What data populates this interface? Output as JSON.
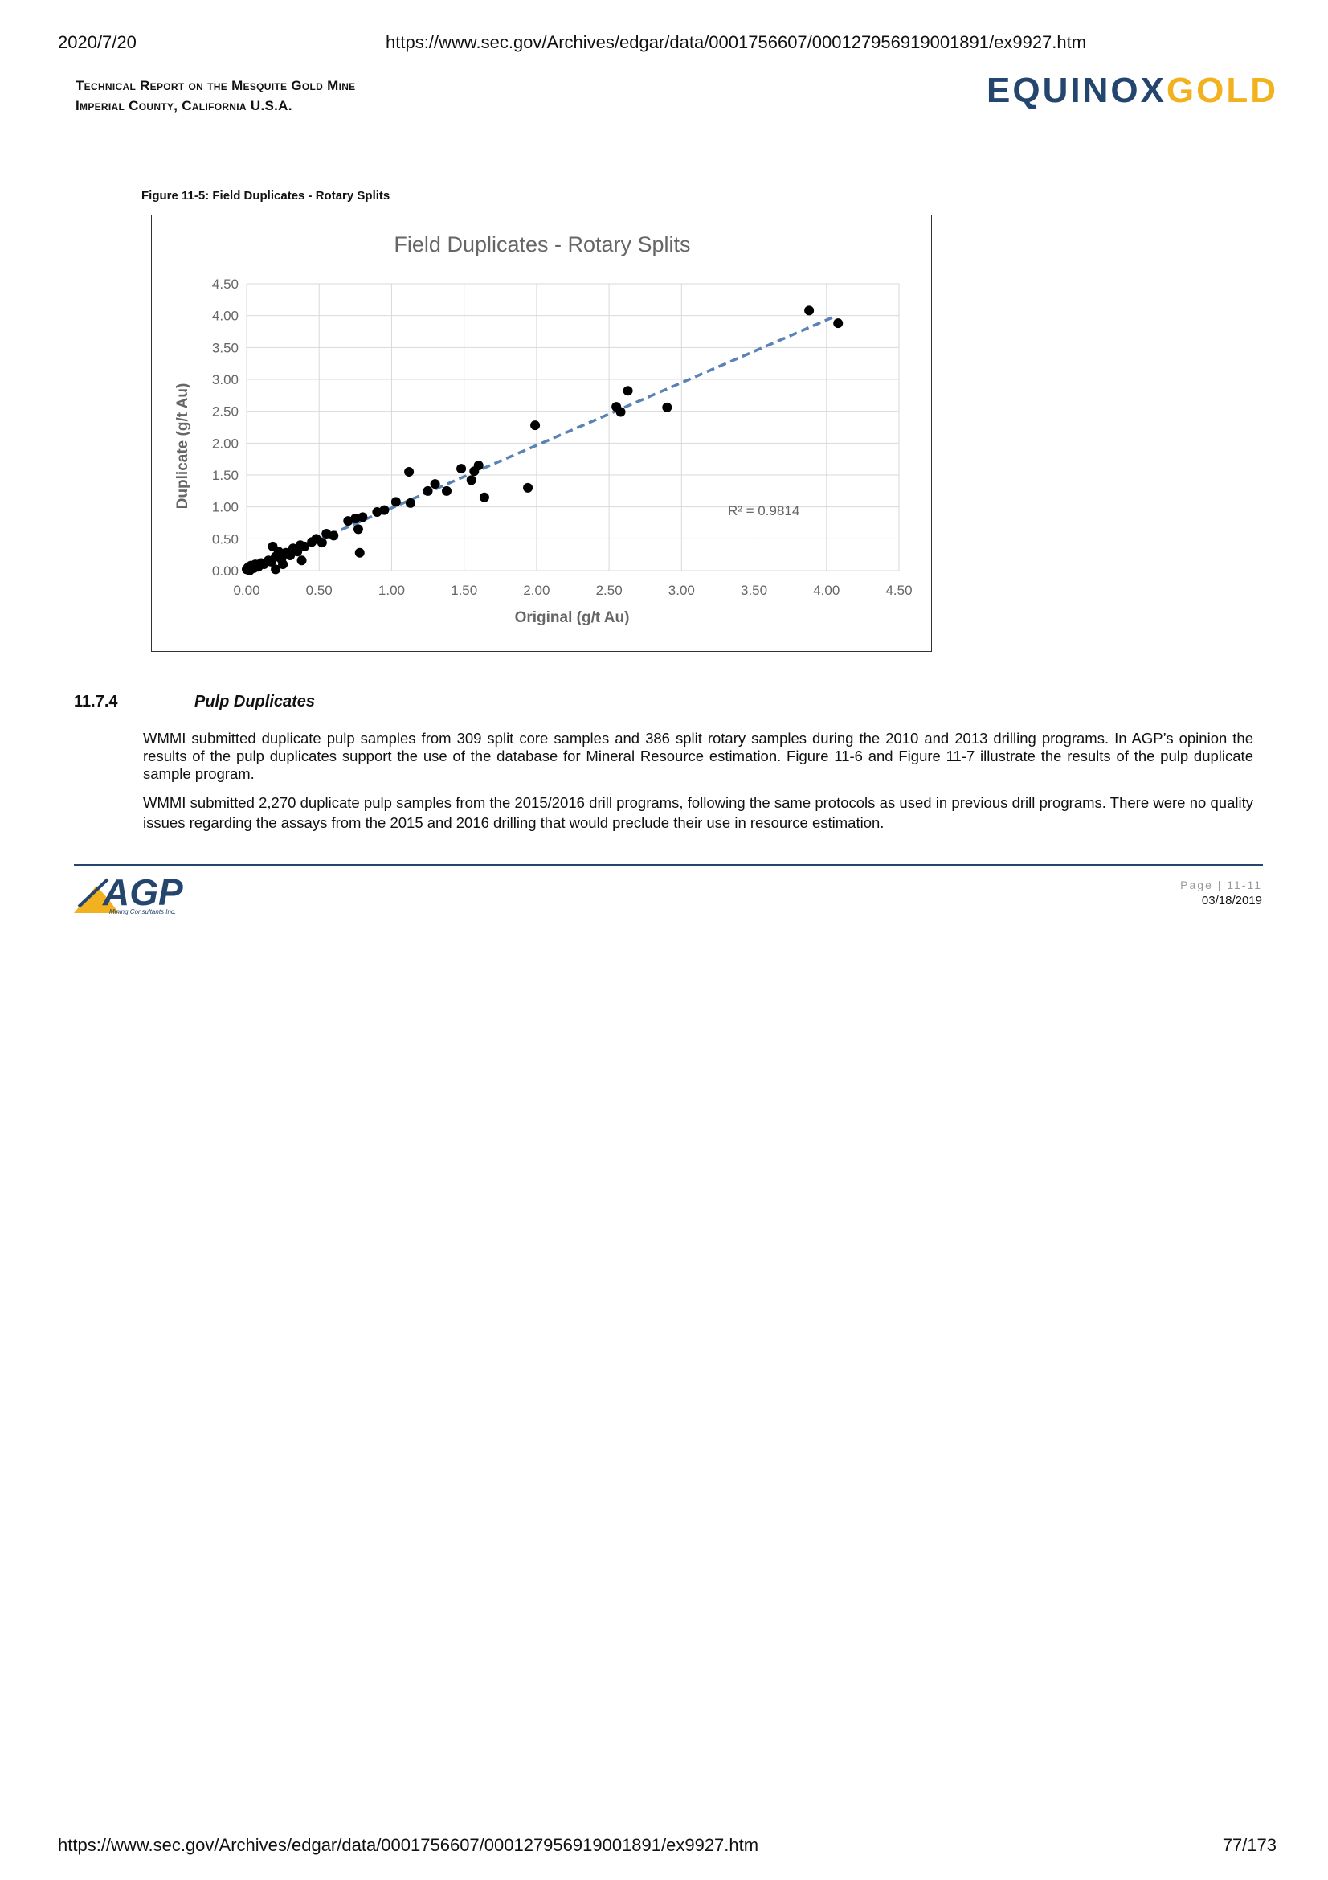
{
  "browser": {
    "print_date": "2020/7/20",
    "url": "https://www.sec.gov/Archives/edgar/data/0001756607/000127956919001891/ex9927.htm",
    "page_counter": "77/173"
  },
  "header": {
    "title_line1": "Technical Report on the Mesquite Gold Mine",
    "title_line2": "Imperial County, California U.S.A.",
    "logo_part1": "EQUINOX",
    "logo_part2": "GOLD"
  },
  "figure": {
    "caption": "Figure 11-5: Field Duplicates - Rotary Splits"
  },
  "chart_data": {
    "type": "scatter",
    "title": "Field Duplicates - Rotary Splits",
    "xlabel": "Original (g/t Au)",
    "ylabel": "Duplicate (g/t Au)",
    "xlim": [
      0,
      4.5
    ],
    "ylim": [
      0,
      4.5
    ],
    "x_ticks": [
      "0.00",
      "0.50",
      "1.00",
      "1.50",
      "2.00",
      "2.50",
      "3.00",
      "3.50",
      "4.00",
      "4.50"
    ],
    "y_ticks": [
      "0.00",
      "0.50",
      "1.00",
      "1.50",
      "2.00",
      "2.50",
      "3.00",
      "3.50",
      "4.00",
      "4.50"
    ],
    "grid": true,
    "annotation": "R² = 0.9814",
    "trendline": {
      "style": "dashed",
      "color": "#5a82b4",
      "from": [
        0,
        0
      ],
      "to": [
        4.05,
        3.98
      ]
    },
    "series": [
      {
        "color": "#000000",
        "points": [
          [
            0.0,
            0.02
          ],
          [
            0.01,
            0.05
          ],
          [
            0.02,
            0.0
          ],
          [
            0.03,
            0.08
          ],
          [
            0.05,
            0.04
          ],
          [
            0.06,
            0.1
          ],
          [
            0.08,
            0.06
          ],
          [
            0.1,
            0.12
          ],
          [
            0.12,
            0.1
          ],
          [
            0.15,
            0.16
          ],
          [
            0.17,
            0.14
          ],
          [
            0.18,
            0.38
          ],
          [
            0.2,
            0.02
          ],
          [
            0.2,
            0.22
          ],
          [
            0.22,
            0.3
          ],
          [
            0.24,
            0.18
          ],
          [
            0.25,
            0.1
          ],
          [
            0.27,
            0.28
          ],
          [
            0.3,
            0.24
          ],
          [
            0.32,
            0.35
          ],
          [
            0.35,
            0.3
          ],
          [
            0.37,
            0.4
          ],
          [
            0.38,
            0.16
          ],
          [
            0.4,
            0.38
          ],
          [
            0.45,
            0.45
          ],
          [
            0.48,
            0.5
          ],
          [
            0.52,
            0.44
          ],
          [
            0.55,
            0.58
          ],
          [
            0.6,
            0.55
          ],
          [
            0.7,
            0.78
          ],
          [
            0.75,
            0.82
          ],
          [
            0.77,
            0.65
          ],
          [
            0.78,
            0.28
          ],
          [
            0.8,
            0.84
          ],
          [
            0.9,
            0.92
          ],
          [
            0.95,
            0.95
          ],
          [
            1.03,
            1.08
          ],
          [
            1.12,
            1.55
          ],
          [
            1.13,
            1.06
          ],
          [
            1.25,
            1.25
          ],
          [
            1.3,
            1.36
          ],
          [
            1.38,
            1.25
          ],
          [
            1.48,
            1.6
          ],
          [
            1.55,
            1.42
          ],
          [
            1.57,
            1.56
          ],
          [
            1.6,
            1.65
          ],
          [
            1.64,
            1.15
          ],
          [
            1.94,
            1.3
          ],
          [
            1.99,
            2.28
          ],
          [
            2.55,
            2.57
          ],
          [
            2.58,
            2.49
          ],
          [
            2.63,
            2.82
          ],
          [
            2.9,
            2.56
          ],
          [
            3.88,
            4.08
          ],
          [
            4.08,
            3.88
          ]
        ]
      }
    ]
  },
  "section": {
    "number": "11.7.4",
    "title": "Pulp Duplicates",
    "paragraph1": "WMMI submitted duplicate pulp samples from 309 split core samples and 386 split rotary samples during the 2010 and 2013 drilling programs. In AGP’s opinion the results of the pulp duplicates support the use of the database for Mineral Resource estimation. Figure 11-6 and Figure 11-7 illustrate the results of the pulp duplicate sample program.",
    "paragraph2": "WMMI submitted 2,270 duplicate pulp samples from the 2015/2016 drill programs, following the same protocols as used in previous drill programs. There were no quality issues regarding the assays from the 2015 and 2016 drilling that would preclude their use in resource estimation."
  },
  "footer": {
    "logo_text": "AGP",
    "logo_subtext": "Mining Consultants Inc.",
    "page_label": "Page | 11-11",
    "date": "03/18/2019",
    "colors": {
      "rule": "#24466e",
      "logo_blue": "#24466e",
      "logo_gold": "#f2b21f"
    }
  }
}
